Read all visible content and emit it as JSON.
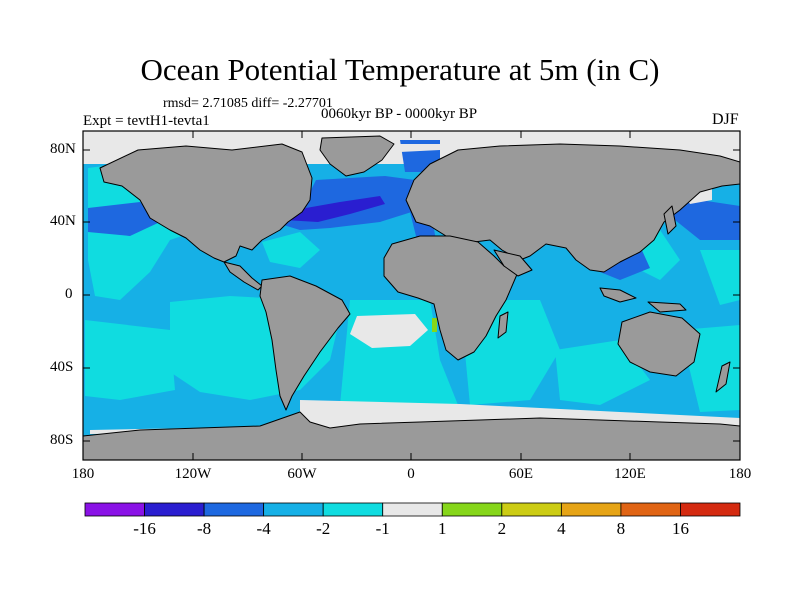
{
  "header": {
    "title": "Ocean Potential Temperature at 5m (in C)",
    "stats": "rmsd= 2.71085 diff= -2.27701",
    "experiment": "Expt = tevtH1-tevta1",
    "period": "0060kyr BP - 0000kyr BP",
    "season": "DJF"
  },
  "map": {
    "lat_labels": [
      "80N",
      "40N",
      "0",
      "40S",
      "80S"
    ],
    "lon_labels": [
      "180",
      "120W",
      "60W",
      "0",
      "60E",
      "120E",
      "180"
    ],
    "land_color": "#9a9a9a",
    "ocean_background_color": "#16b0e6"
  },
  "colorbar": {
    "colors": [
      "#8a12e6",
      "#2a1ed0",
      "#1e68e0",
      "#16b0e6",
      "#10dce0",
      "#e8e8e8",
      "#86d61a",
      "#cccc14",
      "#e6a416",
      "#e06414",
      "#d42a10"
    ],
    "labels": [
      "-16",
      "-8",
      "-4",
      "-2",
      "-1",
      "1",
      "2",
      "4",
      "8",
      "16"
    ]
  }
}
